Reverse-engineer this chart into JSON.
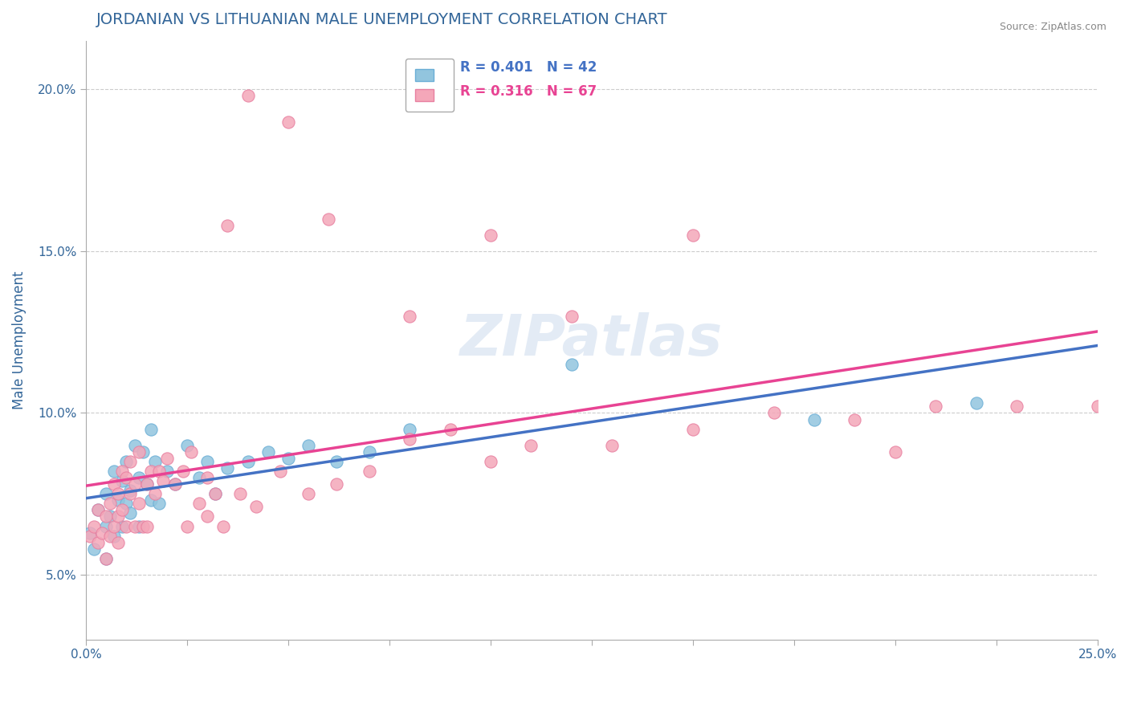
{
  "title": "JORDANIAN VS LITHUANIAN MALE UNEMPLOYMENT CORRELATION CHART",
  "source_text": "Source: ZipAtlas.com",
  "xlabel": "",
  "ylabel": "Male Unemployment",
  "xlim": [
    0.0,
    0.25
  ],
  "ylim": [
    0.03,
    0.215
  ],
  "xticks": [
    0.0,
    0.025,
    0.05,
    0.075,
    0.1,
    0.125,
    0.15,
    0.175,
    0.2,
    0.225,
    0.25
  ],
  "xtick_labels": [
    "0.0%",
    "",
    "",
    "",
    "",
    "",
    "",
    "",
    "",
    "",
    "25.0%"
  ],
  "ytick_positions": [
    0.05,
    0.1,
    0.15,
    0.2
  ],
  "ytick_labels": [
    "5.0%",
    "10.0%",
    "15.0%",
    "20.0%"
  ],
  "jordanian_color": "#92c5de",
  "lithuanian_color": "#f4a7b9",
  "jordanian_edge": "#6aaed6",
  "lithuanian_edge": "#e87fa0",
  "regression_jordan_color": "#4472c4",
  "regression_lith_color": "#e84393",
  "watermark_color": "#d0d8e8",
  "legend_r1": "R = 0.401",
  "legend_n1": "N = 42",
  "legend_r2": "R = 0.316",
  "legend_n2": "N = 67",
  "jordanian_x": [
    0.001,
    0.002,
    0.003,
    0.005,
    0.005,
    0.005,
    0.006,
    0.007,
    0.007,
    0.008,
    0.009,
    0.009,
    0.01,
    0.01,
    0.011,
    0.011,
    0.012,
    0.013,
    0.013,
    0.014,
    0.015,
    0.016,
    0.016,
    0.017,
    0.018,
    0.02,
    0.022,
    0.025,
    0.028,
    0.03,
    0.032,
    0.035,
    0.04,
    0.045,
    0.05,
    0.055,
    0.062,
    0.07,
    0.08,
    0.12,
    0.18,
    0.22
  ],
  "jordanian_y": [
    0.063,
    0.058,
    0.07,
    0.065,
    0.075,
    0.055,
    0.068,
    0.082,
    0.062,
    0.073,
    0.079,
    0.065,
    0.085,
    0.072,
    0.069,
    0.076,
    0.09,
    0.08,
    0.065,
    0.088,
    0.078,
    0.095,
    0.073,
    0.085,
    0.072,
    0.082,
    0.078,
    0.09,
    0.08,
    0.085,
    0.075,
    0.083,
    0.085,
    0.088,
    0.086,
    0.09,
    0.085,
    0.088,
    0.095,
    0.115,
    0.098,
    0.103
  ],
  "lithuanian_x": [
    0.001,
    0.002,
    0.003,
    0.003,
    0.004,
    0.005,
    0.005,
    0.006,
    0.006,
    0.007,
    0.007,
    0.008,
    0.008,
    0.008,
    0.009,
    0.009,
    0.01,
    0.01,
    0.011,
    0.011,
    0.012,
    0.012,
    0.013,
    0.013,
    0.014,
    0.015,
    0.015,
    0.016,
    0.017,
    0.018,
    0.019,
    0.02,
    0.022,
    0.024,
    0.026,
    0.028,
    0.03,
    0.032,
    0.034,
    0.038,
    0.042,
    0.048,
    0.055,
    0.062,
    0.07,
    0.08,
    0.09,
    0.1,
    0.11,
    0.13,
    0.15,
    0.17,
    0.19,
    0.21,
    0.23,
    0.25,
    0.2,
    0.15,
    0.12,
    0.1,
    0.08,
    0.06,
    0.05,
    0.04,
    0.035,
    0.03,
    0.025
  ],
  "lithuanian_y": [
    0.062,
    0.065,
    0.06,
    0.07,
    0.063,
    0.068,
    0.055,
    0.062,
    0.072,
    0.065,
    0.078,
    0.068,
    0.075,
    0.06,
    0.07,
    0.082,
    0.065,
    0.08,
    0.075,
    0.085,
    0.065,
    0.078,
    0.072,
    0.088,
    0.065,
    0.078,
    0.065,
    0.082,
    0.075,
    0.082,
    0.079,
    0.086,
    0.078,
    0.082,
    0.088,
    0.072,
    0.068,
    0.075,
    0.065,
    0.075,
    0.071,
    0.082,
    0.075,
    0.078,
    0.082,
    0.092,
    0.095,
    0.085,
    0.09,
    0.09,
    0.095,
    0.1,
    0.098,
    0.102,
    0.102,
    0.102,
    0.088,
    0.155,
    0.13,
    0.155,
    0.13,
    0.16,
    0.19,
    0.198,
    0.158,
    0.08,
    0.065
  ],
  "background_color": "#ffffff",
  "grid_color": "#cccccc",
  "title_color": "#336699",
  "axis_label_color": "#336699",
  "tick_color": "#336699",
  "watermark_text": "ZIPatlas"
}
